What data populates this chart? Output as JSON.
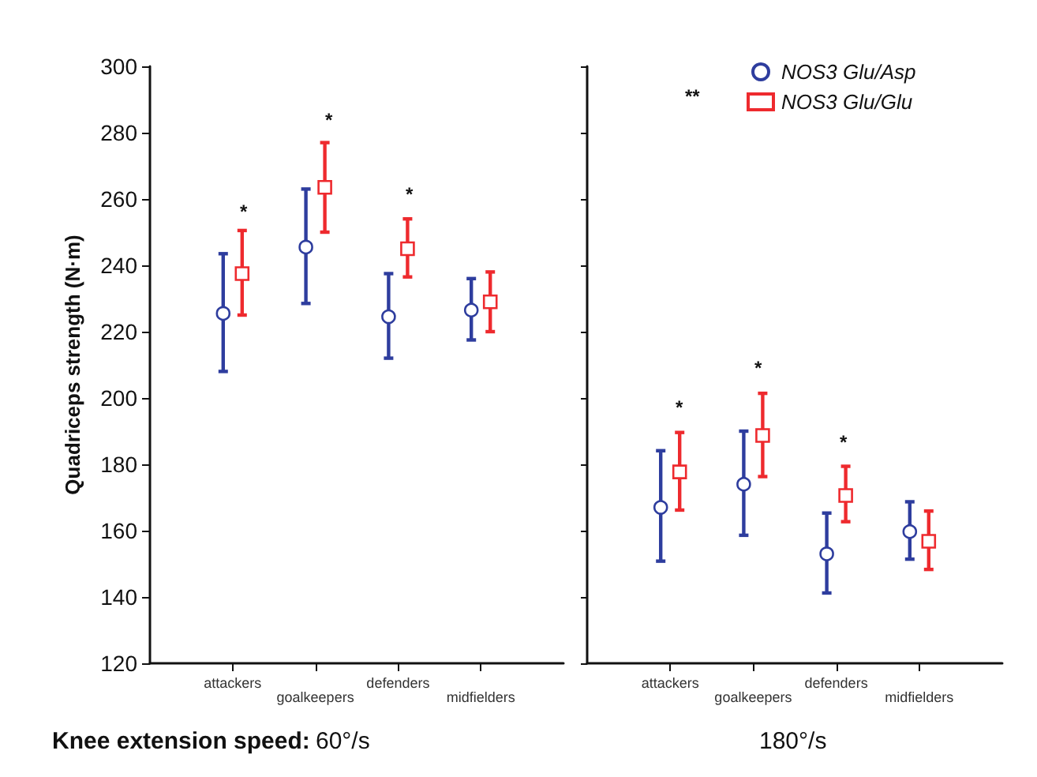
{
  "chart_data": [
    {
      "type": "scatter",
      "ylabel": "Quadriceps strength (N·m)",
      "xlabel": "60°/s",
      "annotations": [
        "Knee extension speed:",
        "*",
        "*",
        "*"
      ],
      "categories": [
        "attackers",
        "goalkeepers",
        "defenders",
        "midfielders"
      ],
      "series": [
        {
          "color": "#2e3d9e",
          "marker": "circle",
          "values": [
            225.5,
            245.5,
            224.5,
            226.5
          ],
          "errors": [
            [
              208,
              243.5
            ],
            [
              228.5,
              263
            ],
            [
              212,
              237.5
            ],
            [
              217.5,
              236
            ]
          ]
        },
        {
          "color": "#ee2a2e",
          "marker": "square",
          "values": [
            237.5,
            263.5,
            245,
            229
          ],
          "errors": [
            [
              225,
              250.5
            ],
            [
              250,
              277
            ],
            [
              236.5,
              254
            ],
            [
              220,
              238
            ]
          ]
        }
      ],
      "ylim": [
        120,
        300
      ],
      "yticks": [
        120,
        140,
        160,
        180,
        200,
        220,
        240,
        260,
        280,
        300
      ],
      "grid": false,
      "legend": false
    },
    {
      "type": "scatter",
      "xlabel": "180°/s",
      "annotations": [
        "**",
        "*",
        "*",
        "*"
      ],
      "categories": [
        "attackers",
        "goalkeepers",
        "defenders",
        "midfielders"
      ],
      "series": [
        {
          "name": "NOS3 Glu/Asp",
          "color": "#2e3d9e",
          "marker": "circle",
          "values": [
            167,
            174,
            153,
            159.7
          ],
          "errors": [
            [
              150.8,
              184.1
            ],
            [
              158.6,
              190
            ],
            [
              141.2,
              165.3
            ],
            [
              151.4,
              168.7
            ]
          ]
        },
        {
          "name": "NOS3 Glu/Glu",
          "color": "#ee2a2e",
          "marker": "square",
          "values": [
            177.7,
            188.7,
            170.6,
            156.8
          ],
          "errors": [
            [
              166.2,
              189.6
            ],
            [
              176.3,
              201.4
            ],
            [
              162.7,
              179.4
            ],
            [
              148.3,
              165.9
            ]
          ]
        }
      ],
      "ylim": [
        120,
        300
      ],
      "yticks": [
        120,
        140,
        160,
        180,
        200,
        220,
        240,
        260,
        280,
        300
      ],
      "tick_labels": "x",
      "grid": false,
      "legend": "top"
    }
  ]
}
